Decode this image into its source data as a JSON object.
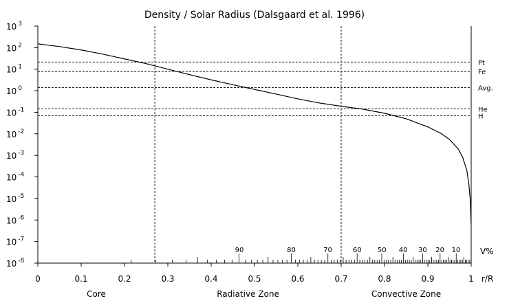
{
  "chart_data": {
    "type": "line",
    "title": "Density / Solar Radius (Dalsgaard et al. 1996)",
    "xlabel": "r/R",
    "ylabel": "",
    "xlim": [
      0,
      1
    ],
    "ylim_log10": [
      -8,
      3
    ],
    "y_scale": "log",
    "grid": false,
    "x_ticks": [
      {
        "value": 0,
        "label": "0"
      },
      {
        "value": 0.1,
        "label": "0.1"
      },
      {
        "value": 0.2,
        "label": "0.2"
      },
      {
        "value": 0.3,
        "label": "0.3"
      },
      {
        "value": 0.4,
        "label": "0.4"
      },
      {
        "value": 0.5,
        "label": "0.5"
      },
      {
        "value": 0.6,
        "label": "0.6"
      },
      {
        "value": 0.7,
        "label": "0.7"
      },
      {
        "value": 0.8,
        "label": "0.8"
      },
      {
        "value": 0.9,
        "label": "0.9"
      },
      {
        "value": 1,
        "label": "1"
      }
    ],
    "y_ticks": [
      {
        "exp": 3,
        "base": "10",
        "sup": "3"
      },
      {
        "exp": 2,
        "base": "10",
        "sup": "2"
      },
      {
        "exp": 1,
        "base": "10",
        "sup": "1"
      },
      {
        "exp": 0,
        "base": "10",
        "sup": "0"
      },
      {
        "exp": -1,
        "base": "10",
        "sup": "-1"
      },
      {
        "exp": -2,
        "base": "10",
        "sup": "-2"
      },
      {
        "exp": -3,
        "base": "10",
        "sup": "-3"
      },
      {
        "exp": -4,
        "base": "10",
        "sup": "-4"
      },
      {
        "exp": -5,
        "base": "10",
        "sup": "-5"
      },
      {
        "exp": -6,
        "base": "10",
        "sup": "-6"
      },
      {
        "exp": -7,
        "base": "10",
        "sup": "-7"
      },
      {
        "exp": -8,
        "base": "10",
        "sup": "-8"
      }
    ],
    "series": [
      {
        "x": [
          0,
          0.05,
          0.1,
          0.15,
          0.2,
          0.25,
          0.3,
          0.35,
          0.4,
          0.45,
          0.5,
          0.55,
          0.6,
          0.65,
          0.7,
          0.75,
          0.8,
          0.85,
          0.9,
          0.93,
          0.95,
          0.97,
          0.98,
          0.99,
          0.995,
          0.998,
          1.0
        ],
        "y": [
          150,
          112,
          78,
          50,
          30,
          18,
          10,
          5.6,
          3.2,
          1.9,
          1.15,
          0.7,
          0.42,
          0.27,
          0.19,
          0.14,
          0.09,
          0.05,
          0.021,
          0.0105,
          0.0055,
          0.002,
          0.00085,
          0.0002,
          4e-05,
          8e-06,
          6e-07
        ]
      }
    ],
    "reference_lines": [
      {
        "label": "Pt",
        "value": 21.45
      },
      {
        "label": "Fe",
        "value": 7.87
      },
      {
        "label": "Avg.",
        "value": 1.41
      },
      {
        "label": "He",
        "value": 0.145
      },
      {
        "label": "H",
        "value": 0.07
      }
    ],
    "zone_boundaries": [
      0.27,
      0.7
    ],
    "zones": [
      {
        "label": "Core",
        "start": 0,
        "end": 0.27
      },
      {
        "label": "Radiative Zone",
        "start": 0.27,
        "end": 0.7
      },
      {
        "label": "Convective Zone",
        "start": 0.7,
        "end": 1
      }
    ],
    "volume_axis": {
      "label": "V%",
      "labeled_ticks": [
        {
          "label": "90",
          "r": 0.465
        },
        {
          "label": "80",
          "r": 0.585
        },
        {
          "label": "70",
          "r": 0.669
        },
        {
          "label": "60",
          "r": 0.737
        },
        {
          "label": "50",
          "r": 0.794
        },
        {
          "label": "40",
          "r": 0.843
        },
        {
          "label": "30",
          "r": 0.888
        },
        {
          "label": "20",
          "r": 0.928
        },
        {
          "label": "10",
          "r": 0.965
        }
      ],
      "minor_step_percent": 1
    }
  }
}
